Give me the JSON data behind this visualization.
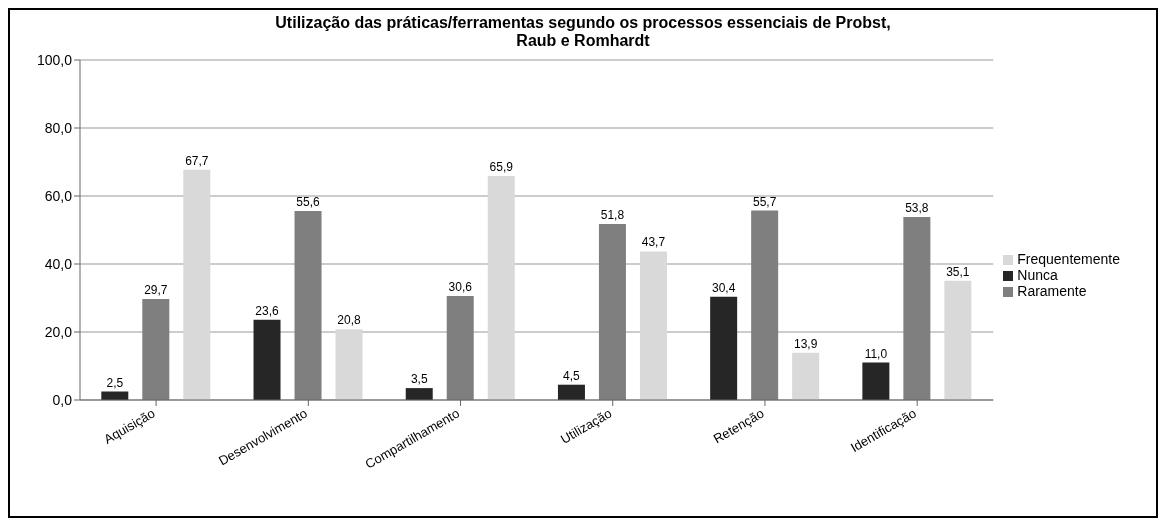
{
  "chart_data": {
    "type": "bar",
    "title": "Utilização das práticas/ferramentas segundo os processos essenciais de Probst, Raub e Romhardt",
    "categories": [
      "Aquisição",
      "Desenvolvimento",
      "Compartilhamento",
      "Utilização",
      "Retenção",
      "Identificação"
    ],
    "series": [
      {
        "name": "Nunca",
        "color": "#262626",
        "values": [
          2.5,
          23.6,
          3.5,
          4.5,
          30.4,
          11.0
        ],
        "value_labels": [
          "2,5",
          "23,6",
          "3,5",
          "4,5",
          "30,4",
          "11,0"
        ]
      },
      {
        "name": "Raramente",
        "color": "#7f7f7f",
        "values": [
          29.7,
          55.6,
          30.6,
          51.8,
          55.7,
          53.8
        ],
        "value_labels": [
          "29,7",
          "55,6",
          "30,6",
          "51,8",
          "55,7",
          "53,8"
        ]
      },
      {
        "name": "Frequentemente",
        "color": "#d9d9d9",
        "values": [
          67.7,
          20.8,
          65.9,
          43.7,
          13.9,
          35.1
        ],
        "value_labels": [
          "67,7",
          "20,8",
          "65,9",
          "43,7",
          "13,9",
          "35,1"
        ]
      }
    ],
    "ylim": [
      0,
      100
    ],
    "yticks": [
      {
        "value": 0,
        "label": "0,0"
      },
      {
        "value": 20,
        "label": "20,0"
      },
      {
        "value": 40,
        "label": "40,0"
      },
      {
        "value": 60,
        "label": "60,0"
      },
      {
        "value": 80,
        "label": "80,0"
      },
      {
        "value": 100,
        "label": "100,0"
      }
    ],
    "grid": "y",
    "legend": "right"
  }
}
